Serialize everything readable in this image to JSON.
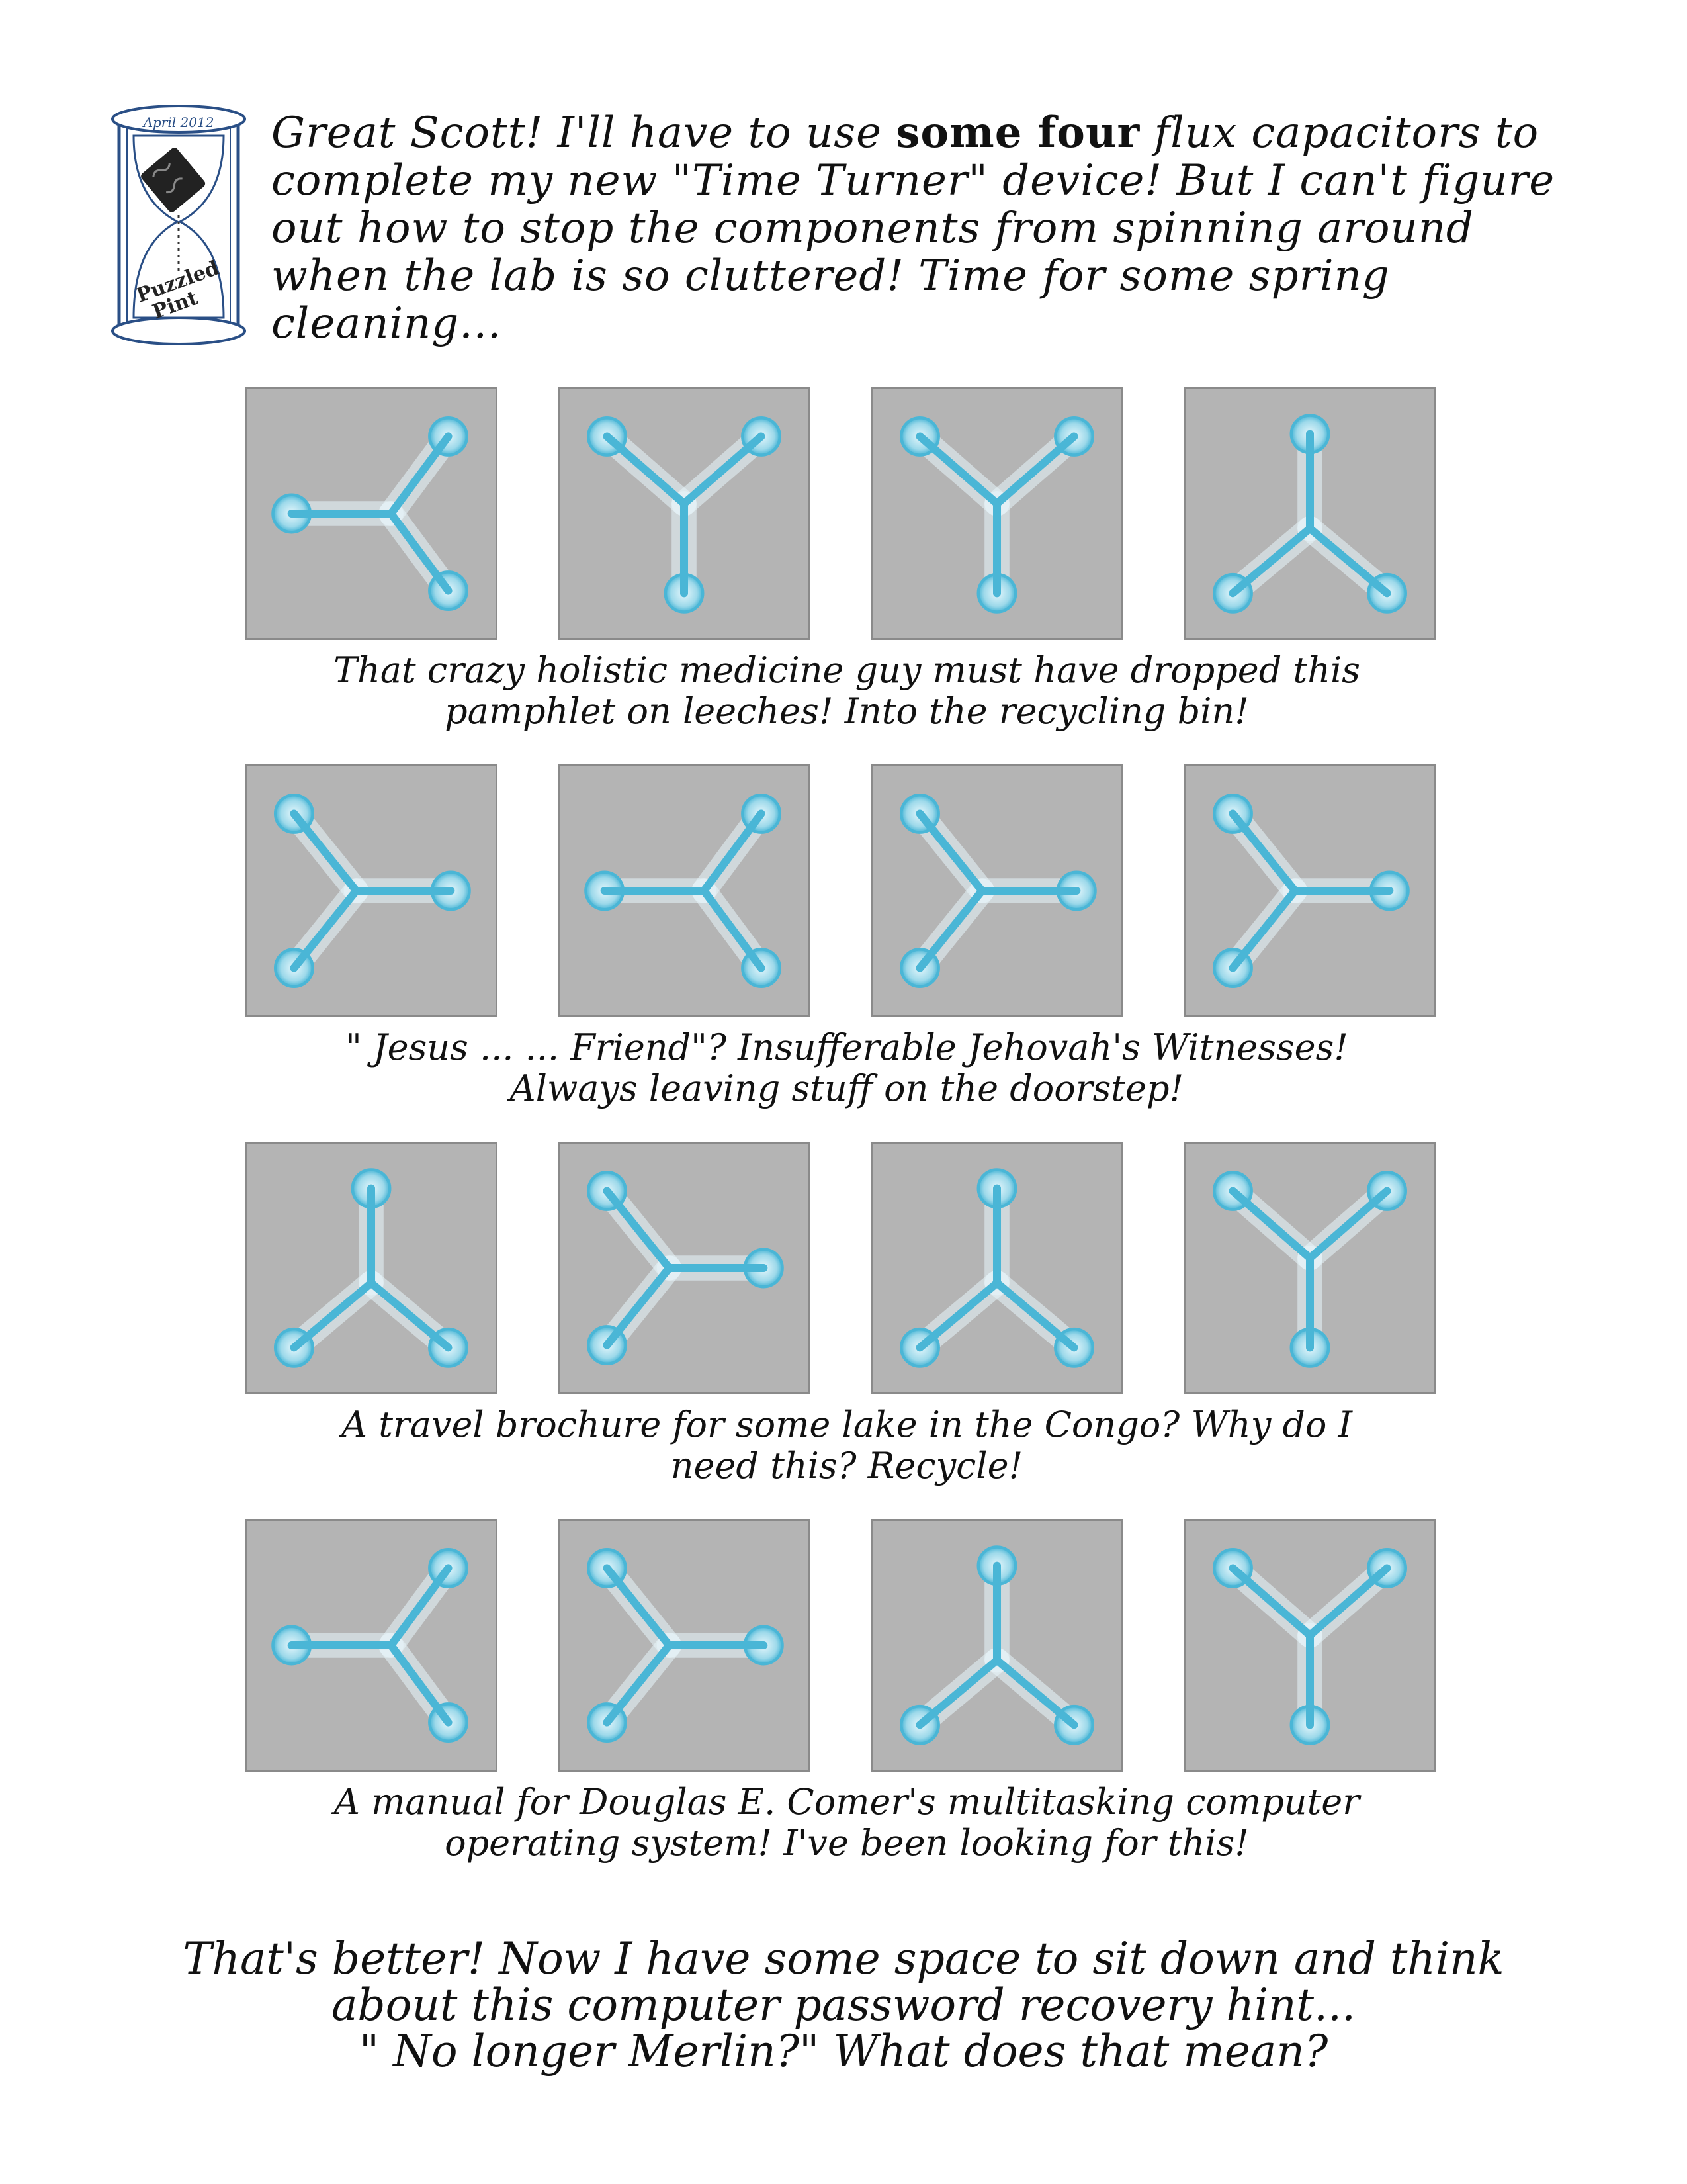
{
  "logo": {
    "date_text": "April 2012",
    "brand_line1": "Puzzled",
    "brand_line2": "Pint",
    "icon": "hourglass-icon"
  },
  "intro": {
    "part1": "Great Scott! I'll have to use ",
    "bold": "some four",
    "part2": " flux capacitors to complete my new \"Time Turner\" device! But I can't figure out how to stop the components from spinning around when the lab is so cluttered! Time for some spring cleaning..."
  },
  "rows": [
    {
      "tiles": [
        "right",
        "up",
        "up",
        "down"
      ],
      "caption_line1": "That crazy holistic medicine guy must have dropped this",
      "caption_line2": "pamphlet on leeches! Into the recycling bin!"
    },
    {
      "tiles": [
        "left",
        "right",
        "left",
        "left"
      ],
      "caption_line1": "\" Jesus ... ... Friend\"? Insufferable Jehovah's Witnesses!",
      "caption_line2": "Always leaving stuff on the doorstep!"
    },
    {
      "tiles": [
        "down",
        "left",
        "down",
        "up"
      ],
      "caption_line1": "A travel brochure for some lake in the Congo? Why do I",
      "caption_line2": "need this? Recycle!"
    },
    {
      "tiles": [
        "right",
        "left",
        "down",
        "up"
      ],
      "caption_line1": "A manual for Douglas E. Comer's multitasking computer",
      "caption_line2": "operating system! I've been looking for this!"
    }
  ],
  "outro": {
    "line1": "That's better! Now I have some space to sit down and think",
    "line2": "about this computer password recovery hint...",
    "line3": "\" No longer Merlin?\" What does that mean?"
  },
  "colors": {
    "tile_bg": "#b4b4b4",
    "tile_border": "#8a8a8a",
    "flux_blue": "#4ab6d6",
    "glow": "#e8f6fb"
  }
}
